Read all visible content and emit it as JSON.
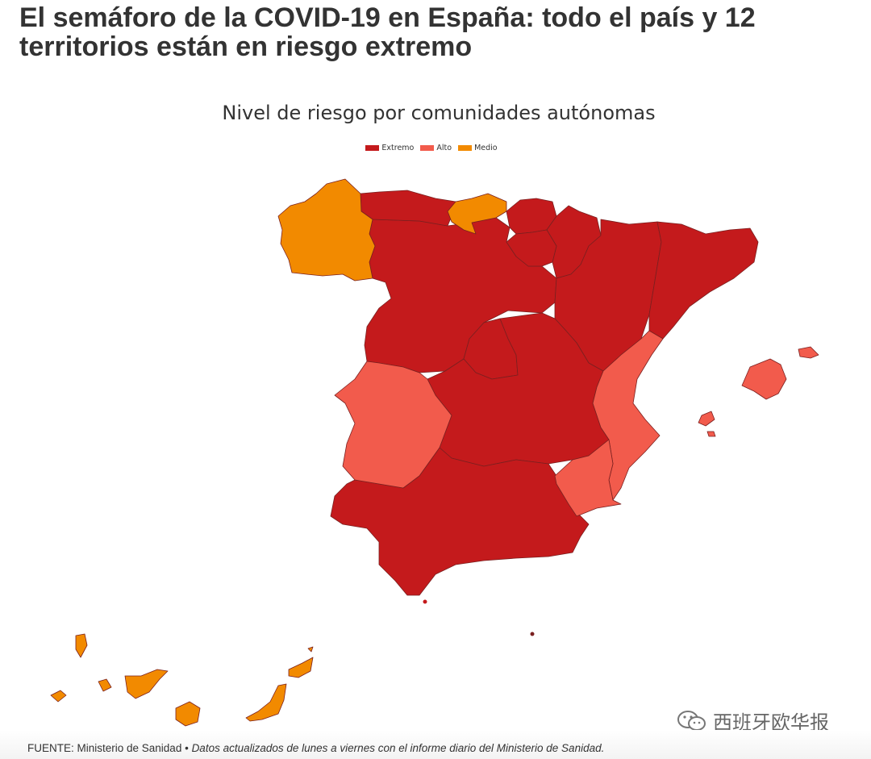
{
  "headline": "El semáforo de la COVID-19 en España: todo el país y 12 territorios están en riesgo extremo",
  "map": {
    "title": "Nivel de riesgo por comunidades autónomas",
    "legend": [
      {
        "label": "Extremo",
        "color": "#c41a1c"
      },
      {
        "label": "Alto",
        "color": "#f25b4c"
      },
      {
        "label": "Medio",
        "color": "#f28a00"
      }
    ],
    "regions": [
      {
        "name": "Galicia",
        "level": "Medio"
      },
      {
        "name": "Asturias",
        "level": "Extremo"
      },
      {
        "name": "Cantabria",
        "level": "Medio"
      },
      {
        "name": "País Vasco",
        "level": "Extremo"
      },
      {
        "name": "Navarra",
        "level": "Extremo"
      },
      {
        "name": "La Rioja",
        "level": "Extremo"
      },
      {
        "name": "Aragón",
        "level": "Extremo"
      },
      {
        "name": "Cataluña",
        "level": "Extremo"
      },
      {
        "name": "Castilla y León",
        "level": "Extremo"
      },
      {
        "name": "Madrid",
        "level": "Extremo"
      },
      {
        "name": "Castilla-La Mancha",
        "level": "Extremo"
      },
      {
        "name": "Extremadura",
        "level": "Alto"
      },
      {
        "name": "Comunitat Valenciana",
        "level": "Alto"
      },
      {
        "name": "Murcia",
        "level": "Alto"
      },
      {
        "name": "Andalucía",
        "level": "Extremo"
      },
      {
        "name": "Illes Balears",
        "level": "Alto"
      },
      {
        "name": "Canarias",
        "level": "Medio"
      },
      {
        "name": "Ceuta",
        "level": "Extremo"
      },
      {
        "name": "Melilla",
        "level": "Extremo"
      }
    ]
  },
  "footer": {
    "source": "FUENTE: Ministerio de Sanidad",
    "separator": " • ",
    "note": "Datos actualizados de lunes a viernes con el informe diario del Ministerio de Sanidad."
  },
  "watermark": {
    "text": "西班牙欧华报",
    "icon": "wechat-icon"
  }
}
